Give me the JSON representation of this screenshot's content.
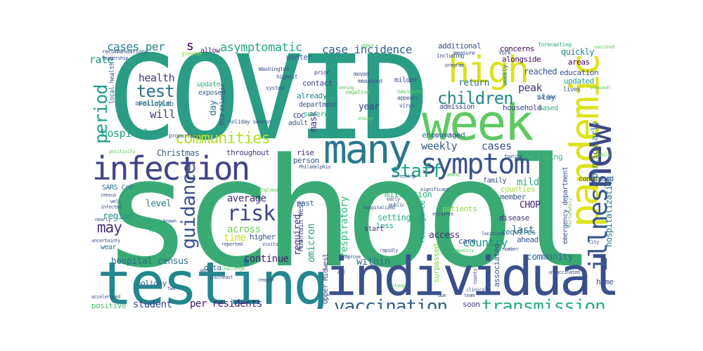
{
  "words": [
    {
      "text": "school",
      "color": "#3aaa74"
    },
    {
      "text": "COVID",
      "color": "#2a9d84"
    },
    {
      "text": "testing",
      "color": "#24868e"
    },
    {
      "text": "individual",
      "color": "#39508b"
    },
    {
      "text": "week",
      "color": "#5ec962"
    },
    {
      "text": "pandemic",
      "color": "#dde318"
    },
    {
      "text": "many",
      "color": "#29788e"
    },
    {
      "text": "new",
      "color": "#3f4788"
    },
    {
      "text": "high",
      "color": "#d8e219"
    },
    {
      "text": "infection",
      "color": "#414487"
    },
    {
      "text": "symptom",
      "color": "#3b528b"
    },
    {
      "text": "illness",
      "color": "#38588c"
    },
    {
      "text": "vaccination",
      "color": "#355f8d"
    },
    {
      "text": "transmission",
      "color": "#2ab07f"
    },
    {
      "text": "guidance",
      "color": "#3b528b"
    },
    {
      "text": "risk",
      "color": "#404688"
    },
    {
      "text": "staff",
      "color": "#1fa187"
    },
    {
      "text": "communities",
      "color": "#b5de2b"
    },
    {
      "text": "children",
      "color": "#23898e"
    },
    {
      "text": "period",
      "color": "#1f9e89"
    },
    {
      "text": "test",
      "color": "#2c728e"
    },
    {
      "text": "asymptomatic",
      "color": "#22a884"
    },
    {
      "text": "case incidence",
      "color": "#355e8d"
    },
    {
      "text": "cases per",
      "color": "#25858e"
    },
    {
      "text": "may",
      "color": "#46307e"
    },
    {
      "text": "health",
      "color": "#453882"
    },
    {
      "text": "rate",
      "color": "#1f968b"
    },
    {
      "text": "will",
      "color": "#443a83"
    },
    {
      "text": "hospital",
      "color": "#20a386"
    },
    {
      "text": "weekly",
      "color": "#365d8d"
    },
    {
      "text": "cases",
      "color": "#3d4d8a"
    },
    {
      "text": "average",
      "color": "#482979"
    },
    {
      "text": "across",
      "color": "#6ece58"
    },
    {
      "text": "time",
      "color": "#d0e11c"
    },
    {
      "text": "continue",
      "color": "#481f70"
    },
    {
      "text": "country",
      "color": "#1f988b"
    },
    {
      "text": "community",
      "color": "#31688e"
    },
    {
      "text": "within",
      "color": "#2e6e8e"
    },
    {
      "text": "hospital census",
      "color": "#2d708e"
    },
    {
      "text": "per residents",
      "color": "#481a6c"
    },
    {
      "text": "student",
      "color": "#3e4989"
    },
    {
      "text": "omicron",
      "color": "#22a884"
    },
    {
      "text": "respiratory",
      "color": "#35b779"
    },
    {
      "text": "required",
      "color": "#472d7b"
    },
    {
      "text": "CHOP",
      "color": "#482475"
    },
    {
      "text": "mild",
      "color": "#31b57b"
    },
    {
      "text": "last",
      "color": "#2e6f8e"
    },
    {
      "text": "access",
      "color": "#472e7c"
    },
    {
      "text": "peak",
      "color": "#46327e"
    },
    {
      "text": "return",
      "color": "#2d718e"
    },
    {
      "text": "year",
      "color": "#3f4889"
    },
    {
      "text": "level",
      "color": "#277f8e"
    },
    {
      "text": "region",
      "color": "#1f948c"
    },
    {
      "text": "day",
      "color": "#2a778e"
    },
    {
      "text": "mask",
      "color": "#46337f"
    },
    {
      "text": "s",
      "color": "#440154"
    },
    {
      "text": "hospitalization",
      "color": "#2c738e"
    },
    {
      "text": "particularly",
      "color": "#2a788e"
    },
    {
      "text": "education",
      "color": "#3b528b"
    },
    {
      "text": "quickly",
      "color": "#26828e"
    },
    {
      "text": "areas",
      "color": "#450559"
    },
    {
      "text": "reached",
      "color": "#38598c"
    },
    {
      "text": "stay",
      "color": "#287c8e"
    },
    {
      "text": "updated",
      "color": "#1e9c89"
    },
    {
      "text": "Christmas",
      "color": "#34618d"
    },
    {
      "text": "throughout",
      "color": "#433e85"
    },
    {
      "text": "rise",
      "color": "#443983"
    },
    {
      "text": "mitigation",
      "color": "#2ab07f"
    },
    {
      "text": "person",
      "color": "#3b528b"
    },
    {
      "text": "setting",
      "color": "#25ac82"
    },
    {
      "text": "less",
      "color": "#1f9a8a"
    },
    {
      "text": "resurgence",
      "color": "#1e9b8a"
    },
    {
      "text": "past",
      "color": "#355f8d"
    },
    {
      "text": "higher",
      "color": "#3b528b"
    },
    {
      "text": "patients",
      "color": "#8fd744"
    },
    {
      "text": "care",
      "color": "#3e4a89"
    },
    {
      "text": "ahead",
      "color": "#39558c"
    },
    {
      "text": "requires",
      "color": "#2d708e"
    },
    {
      "text": "disease",
      "color": "#46337f"
    },
    {
      "text": "member",
      "color": "#3b528b"
    },
    {
      "text": "counties",
      "color": "#a2da37"
    },
    {
      "text": "soon",
      "color": "#433d84"
    },
    {
      "text": "associated",
      "color": "#3b528b"
    },
    {
      "text": "surpassed",
      "color": "#84d44b"
    },
    {
      "text": "positive",
      "color": "#4ac16d"
    },
    {
      "text": "holiday",
      "color": "#306a8e"
    },
    {
      "text": "data",
      "color": "#2b748e"
    },
    {
      "text": "winter",
      "color": "#375a8c"
    },
    {
      "text": "home",
      "color": "#3e4c8a"
    },
    {
      "text": "emergency department",
      "color": "#3a538b"
    },
    {
      "text": "continued",
      "color": "#3b528b"
    },
    {
      "text": "SARS CoV",
      "color": "#2b758e"
    },
    {
      "text": "family",
      "color": "#3d4e8a"
    },
    {
      "text": "declining",
      "color": "#3aba76"
    },
    {
      "text": "encouraged",
      "color": "#2a778e"
    },
    {
      "text": "household",
      "color": "#3e4a89"
    },
    {
      "text": "admission",
      "color": "#3f4788"
    },
    {
      "text": "based",
      "color": "#2db27d"
    },
    {
      "text": "alongside",
      "color": "#46085c"
    },
    {
      "text": "concerns",
      "color": "#440154"
    },
    {
      "text": "additional",
      "color": "#3c4f8a"
    },
    {
      "text": "department",
      "color": "#3b528b"
    },
    {
      "text": "severe",
      "color": "#2ab07f"
    },
    {
      "text": "already",
      "color": "#25848e"
    },
    {
      "text": "contact",
      "color": "#3e4a89"
    },
    {
      "text": "milder",
      "color": "#3e4989"
    },
    {
      "text": "adult",
      "color": "#3a548c"
    },
    {
      "text": "CDC",
      "color": "#3f4788"
    },
    {
      "text": "update",
      "color": "#2fb47c"
    },
    {
      "text": "exposed",
      "color": "#355f8d"
    },
    {
      "text": "available",
      "color": "#2a788e"
    },
    {
      "text": "PolicyLab",
      "color": "#2f6b8e"
    },
    {
      "text": "Mid Atlantic",
      "color": "#3b528b"
    },
    {
      "text": "allow",
      "color": "#471365"
    },
    {
      "text": "Upper Midwest",
      "color": "#3f4889"
    },
    {
      "text": "Mountain West",
      "color": "#3b528b"
    },
    {
      "text": "start",
      "color": "#472d7b"
    },
    {
      "text": "now",
      "color": "#32b67a"
    },
    {
      "text": "wear",
      "color": "#306a8e"
    },
    {
      "text": "local health",
      "color": "#38598c"
    },
    {
      "text": "lives",
      "color": "#3b528b"
    },
    {
      "text": "weekly",
      "color": "#2b758e"
    },
    {
      "text": "forecasting",
      "color": "#28ae80"
    },
    {
      "text": "measure",
      "color": "#3b528b"
    },
    {
      "text": "York",
      "color": "#3b528b"
    },
    {
      "text": "including",
      "color": "#3b528b"
    },
    {
      "text": "greater",
      "color": "#8fd744"
    },
    {
      "text": "recommendations",
      "color": "#3b528b"
    },
    {
      "text": "Washington",
      "color": "#3b528b"
    },
    {
      "text": "system",
      "color": "#3b528b"
    },
    {
      "text": "prior",
      "color": "#472d7b"
    },
    {
      "text": "moved",
      "color": "#3b528b"
    },
    {
      "text": "measured",
      "color": "#3b528b"
    },
    {
      "text": "highest",
      "color": "#3b528b"
    },
    {
      "text": "appears",
      "color": "#3b528b"
    },
    {
      "text": "navigate",
      "color": "#5ec962"
    },
    {
      "text": "negative",
      "color": "#5ec962"
    },
    {
      "text": "virus",
      "color": "#3b528b"
    },
    {
      "text": "holiday season",
      "color": "#3b528b"
    },
    {
      "text": "proportion",
      "color": "#3b528b"
    },
    {
      "text": "positivity",
      "color": "#5ec962"
    },
    {
      "text": "census",
      "color": "#3b528b"
    },
    {
      "text": "instruction",
      "color": "#3b528b"
    },
    {
      "text": "footing",
      "color": "#3b528b"
    },
    {
      "text": "screening",
      "color": "#3b528b"
    },
    {
      "text": "Philadelphia",
      "color": "#3b528b"
    },
    {
      "text": "early",
      "color": "#3b528b"
    },
    {
      "text": "public",
      "color": "#3b528b"
    },
    {
      "text": "hospitalized",
      "color": "#3b528b"
    },
    {
      "text": "rapidly",
      "color": "#3b528b"
    },
    {
      "text": "evidence",
      "color": "#3b528b"
    },
    {
      "text": "capacity",
      "color": "#5ec962"
    },
    {
      "text": "significant",
      "color": "#3b528b"
    },
    {
      "text": "clinical",
      "color": "#3b528b"
    },
    {
      "text": "team",
      "color": "#3b528b"
    },
    {
      "text": "county",
      "color": "#3b528b"
    },
    {
      "text": "number",
      "color": "#3b528b"
    },
    {
      "text": "unvaccinated",
      "color": "#3b528b"
    },
    {
      "text": "Fortunately",
      "color": "#5ec962"
    },
    {
      "text": "City",
      "color": "#3b528b"
    },
    {
      "text": "well",
      "color": "#3b528b"
    },
    {
      "text": "infected",
      "color": "#3b528b"
    },
    {
      "text": "nearly",
      "color": "#3b528b"
    },
    {
      "text": "known",
      "color": "#3b528b"
    },
    {
      "text": "uncertainty",
      "color": "#3b528b"
    },
    {
      "text": "reported",
      "color": "#3b528b"
    },
    {
      "text": "visits",
      "color": "#3b528b"
    },
    {
      "text": "challenge",
      "color": "#5ec962"
    },
    {
      "text": "accelerated",
      "color": "#3b528b"
    },
    {
      "text": "Southeast",
      "color": "#3b528b"
    },
    {
      "text": "reopen",
      "color": "#3b528b"
    },
    {
      "text": "improve",
      "color": "#3b528b"
    },
    {
      "text": "along",
      "color": "#5ec962"
    },
    {
      "text": "two",
      "color": "#3b528b"
    },
    {
      "text": "worst",
      "color": "#3b528b"
    },
    {
      "text": "leadership",
      "color": "#3b528b"
    },
    {
      "text": "program",
      "color": "#3b528b"
    },
    {
      "text": "due",
      "color": "#3b528b"
    },
    {
      "text": "current",
      "color": "#3b528b"
    },
    {
      "text": "daily",
      "color": "#5ec962"
    },
    {
      "text": "England",
      "color": "#5ec962"
    },
    {
      "text": "among",
      "color": "#5ec962"
    },
    {
      "text": "ACE",
      "color": "#3b528b"
    },
    {
      "text": "upper",
      "color": "#5ec962"
    },
    {
      "text": "seeing",
      "color": "#5ec962"
    },
    {
      "text": "enough",
      "color": "#5ec962"
    },
    {
      "text": "vaccinated",
      "color": "#5ec962"
    },
    {
      "text": "seasonal",
      "color": "#5ec962"
    },
    {
      "text": "locations",
      "color": "#3b528b"
    }
  ]
}
